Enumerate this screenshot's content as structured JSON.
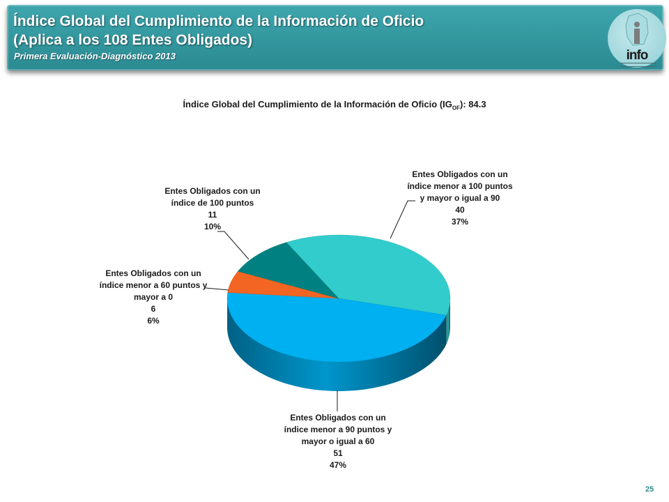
{
  "header": {
    "title_line1": "Índice Global del Cumplimiento de la Información de Oficio",
    "title_line2": "(Aplica a los 108 Entes Obligados)",
    "subtitle": "Primera Evaluación-Diagnóstico 2013",
    "logo_text": "info",
    "logo_icon": "infodf-logo-icon"
  },
  "chart_data": {
    "type": "pie",
    "title": "Índice Global del Cumplimiento de la Información de Oficio (IG",
    "title_sub": "OF",
    "title_end": "): 84.3",
    "slices": [
      {
        "label_lines": [
          "Entes Obligados con un",
          "índice menor a 100 puntos",
          "y mayor o igual a 90"
        ],
        "value": 40,
        "percent": "37%",
        "color": "#33cccc"
      },
      {
        "label_lines": [
          "Entes Obligados con un",
          "índice menor a 90 puntos y",
          "mayor o igual a 60"
        ],
        "value": 51,
        "percent": "47%",
        "color": "#00b0f0"
      },
      {
        "label_lines": [
          "Entes Obligados con un",
          "índice menor a 60 puntos y",
          "mayor a 0"
        ],
        "value": 6,
        "percent": "6%",
        "color": "#f26522"
      },
      {
        "label_lines": [
          "Entes Obligados con un",
          "índice de 100 puntos"
        ],
        "value": 11,
        "percent": "10%",
        "color": "#008080"
      }
    ]
  },
  "footer": {
    "page_number": "25"
  }
}
